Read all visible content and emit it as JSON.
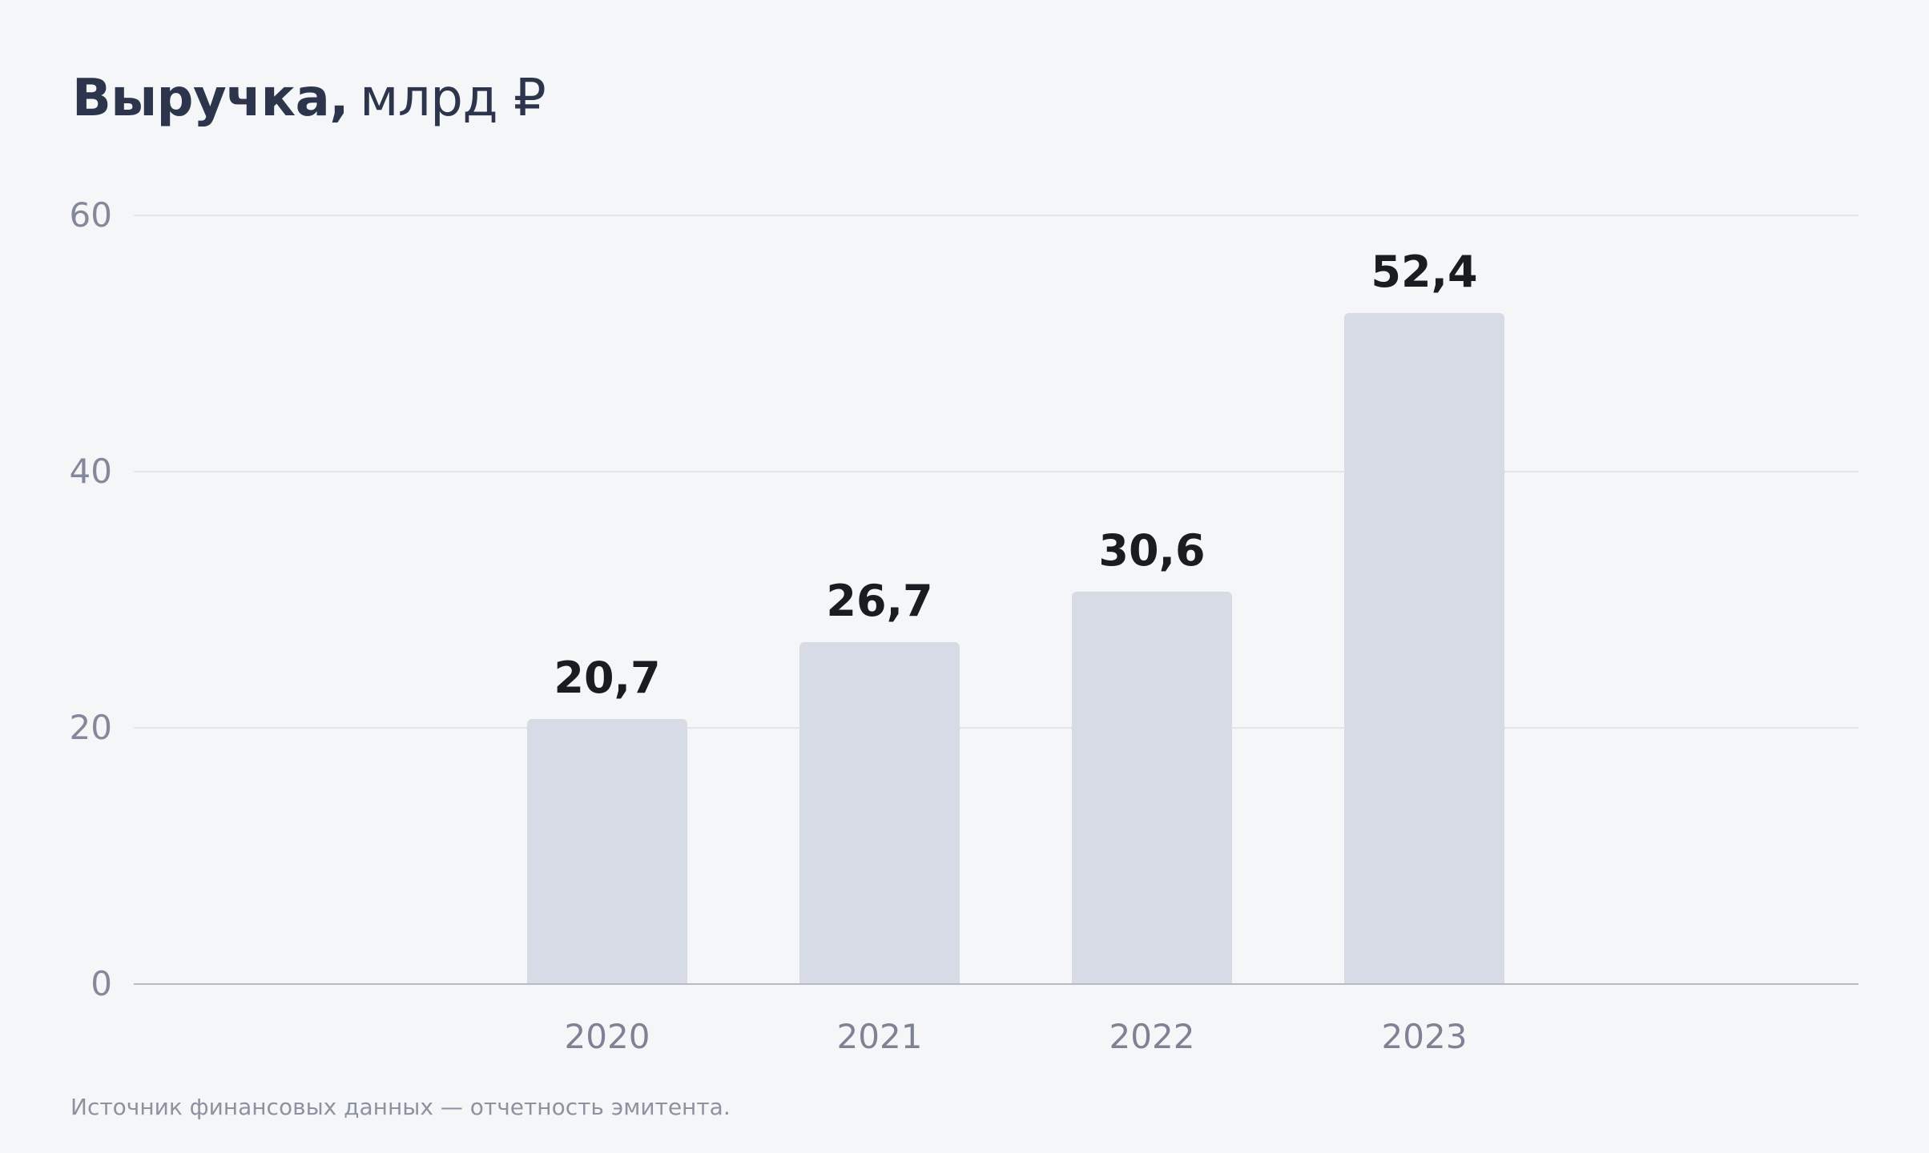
{
  "title": {
    "main": "Выручка,",
    "unit": "млрд ₽"
  },
  "source_note": "Источник финансовых данных — отчетность эмитента.",
  "colors": {
    "background": "#f5f6f8",
    "bar_fill": "#d6dbe6",
    "gridline": "#e3e5ea",
    "baseline": "#b6bac4",
    "title_text": "#2d354c",
    "value_label_text": "#1a1c21",
    "axis_tick_text": "#83899b",
    "x_label_text": "#7d8394",
    "source_text": "#8d92a0"
  },
  "chart_data": {
    "type": "bar",
    "title": "Выручка, млрд ₽",
    "categories": [
      "2020",
      "2021",
      "2022",
      "2023"
    ],
    "values": [
      20.7,
      26.7,
      30.6,
      52.4
    ],
    "value_labels": [
      "20,7",
      "26,7",
      "30,6",
      "52,4"
    ],
    "xlabel": "",
    "ylabel": "",
    "ylim": [
      0,
      60
    ],
    "yticks": [
      0,
      20,
      40,
      60
    ],
    "ytick_labels": [
      "0",
      "20",
      "40",
      "60"
    ],
    "grid": true,
    "legend": false
  }
}
